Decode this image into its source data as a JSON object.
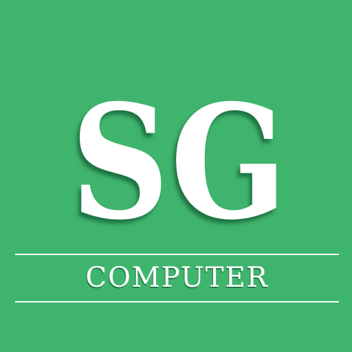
{
  "brand": {
    "monogram": "SG",
    "wordmark": "COMPUTER"
  },
  "colors": {
    "background": "#3fb46d",
    "foreground": "#ffffff",
    "shadow": "#1f7a45"
  }
}
